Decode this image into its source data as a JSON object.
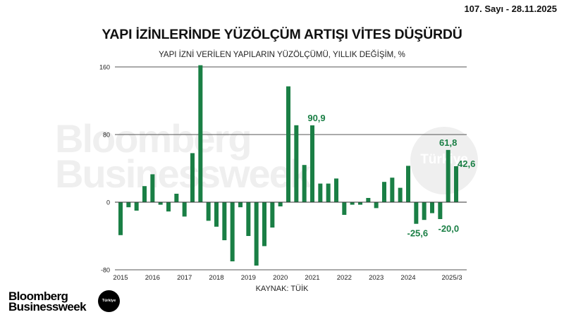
{
  "header": {
    "issue": "107. Sayı - 28.11.2025",
    "title": "YAPI İZİNLERİNDE YÜZÖLÇÜM ARTIŞI VİTES DÜŞÜRDÜ",
    "subtitle": "YAPI İZNİ VERİLEN YAPILARIN YÜZÖLÇÜMÜ, YILLIK DEĞİŞİM, %"
  },
  "watermark": {
    "line1": "Bloomberg",
    "line2": "Businessweek",
    "badge": "Türkiye"
  },
  "footer": {
    "source": "KAYNAK: TÜİK",
    "logo_line1": "Bloomberg",
    "logo_line2": "Businessweek",
    "logo_badge": "Türkiye"
  },
  "colors": {
    "bar": "#1a7f45",
    "label": "#1a7f45",
    "grid": "#555555"
  },
  "chart_data": {
    "type": "bar",
    "title": "YAPI İZİNLERİNDE YÜZÖLÇÜM ARTIŞI VİTES DÜŞÜRDÜ",
    "subtitle": "YAPI İZNİ VERİLEN YAPILARIN YÜZÖLÇÜMÜ, YILLIK DEĞİŞİM, %",
    "xlabel": "",
    "ylabel": "%",
    "ylim": [
      -80,
      160
    ],
    "yticks": [
      -80,
      0,
      80,
      160
    ],
    "grid": true,
    "legend": null,
    "source": "KAYNAK: TÜİK",
    "x_tick_labels": [
      "2015",
      "2016",
      "2017",
      "2018",
      "2019",
      "2020",
      "2021",
      "2022",
      "2023",
      "2024",
      "2025/3"
    ],
    "categories": [
      "2015Q1",
      "2015Q2",
      "2015Q3",
      "2015Q4",
      "2016Q1",
      "2016Q2",
      "2016Q3",
      "2016Q4",
      "2017Q1",
      "2017Q2",
      "2017Q3",
      "2017Q4",
      "2018Q1",
      "2018Q2",
      "2018Q3",
      "2018Q4",
      "2019Q1",
      "2019Q2",
      "2019Q3",
      "2019Q4",
      "2020Q1",
      "2020Q2",
      "2020Q3",
      "2020Q4",
      "2021Q1",
      "2021Q2",
      "2021Q3",
      "2021Q4",
      "2022Q1",
      "2022Q2",
      "2022Q3",
      "2022Q4",
      "2023Q1",
      "2023Q2",
      "2023Q3",
      "2023Q4",
      "2024Q1",
      "2024Q2",
      "2024Q3",
      "2024Q4",
      "2025Q1",
      "2025Q2",
      "2025Q3"
    ],
    "values": [
      -39,
      -6,
      -10,
      19,
      33,
      -3,
      -11,
      10,
      -17,
      58,
      162,
      -22,
      -29,
      -45,
      -70,
      -6,
      -40,
      -75,
      -52,
      -30,
      -5,
      137,
      91,
      44,
      90.9,
      22,
      22,
      28,
      -15,
      -3,
      -3,
      5,
      -7,
      24,
      29,
      17,
      43,
      -25.6,
      -21,
      -13,
      -20,
      61.8,
      42.6
    ],
    "annotations": [
      {
        "index": 24,
        "text": "90,9"
      },
      {
        "index": 37,
        "text": "-25,6"
      },
      {
        "index": 40,
        "text": "-20,0"
      },
      {
        "index": 41,
        "text": "61,8"
      },
      {
        "index": 42,
        "text": "42,6"
      }
    ]
  }
}
